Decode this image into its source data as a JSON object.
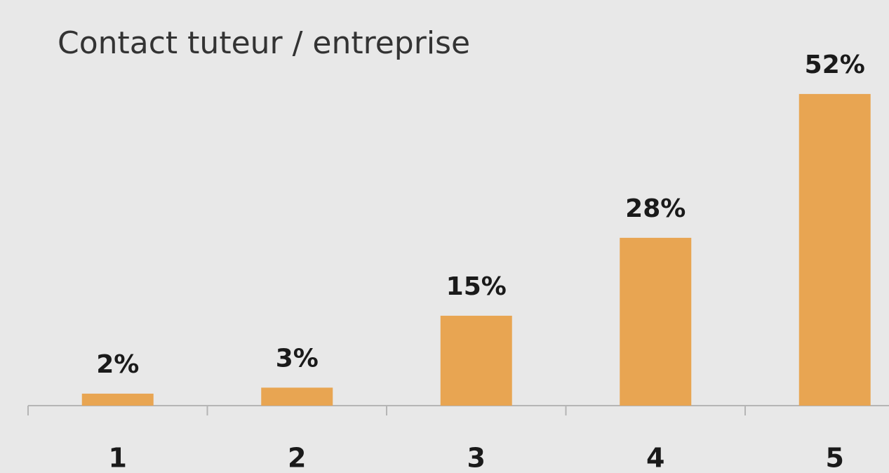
{
  "chart_data": {
    "type": "bar",
    "title": "Contact tuteur / entreprise",
    "categories": [
      "1",
      "2",
      "3",
      "4",
      "5"
    ],
    "values": [
      2,
      3,
      15,
      28,
      52
    ],
    "value_labels": [
      "2%",
      "3%",
      "15%",
      "28%",
      "52%"
    ],
    "color": "#e8a552"
  }
}
